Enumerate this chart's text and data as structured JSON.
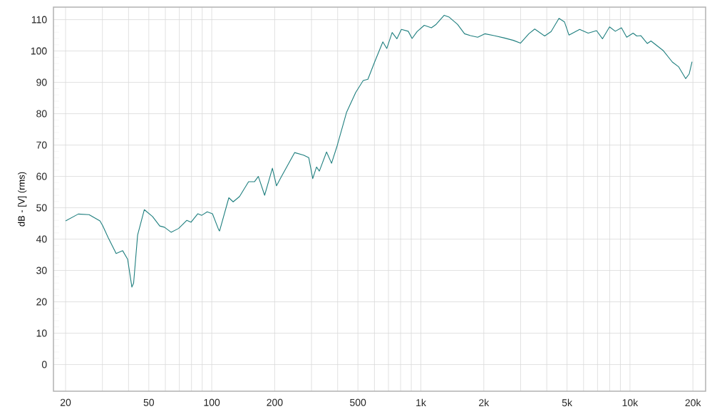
{
  "chart_data": {
    "type": "line",
    "ylabel": "dB - [V]  (rms)",
    "log": "x",
    "grid": true,
    "xlim": [
      17.5,
      23000
    ],
    "ylim": [
      -8.5,
      114
    ],
    "xticks": [
      20,
      {
        "value": 30,
        "label": null
      },
      {
        "value": 40,
        "label": null
      },
      50,
      {
        "value": 60,
        "label": null
      },
      {
        "value": 70,
        "label": null
      },
      {
        "value": 80,
        "label": null
      },
      {
        "value": 90,
        "label": null
      },
      100,
      200,
      {
        "value": 300,
        "label": null
      },
      {
        "value": 400,
        "label": null
      },
      500,
      {
        "value": 600,
        "label": null
      },
      {
        "value": 700,
        "label": null
      },
      {
        "value": 800,
        "label": null
      },
      {
        "value": 900,
        "label": null
      },
      {
        "value": 1000,
        "label": "1k"
      },
      {
        "value": 2000,
        "label": "2k"
      },
      {
        "value": 3000,
        "label": null
      },
      {
        "value": 4000,
        "label": null
      },
      {
        "value": 5000,
        "label": "5k"
      },
      {
        "value": 6000,
        "label": null
      },
      {
        "value": 7000,
        "label": null
      },
      {
        "value": 8000,
        "label": null
      },
      {
        "value": 9000,
        "label": null
      },
      {
        "value": 10000,
        "label": "10k"
      },
      {
        "value": 20000,
        "label": "20k"
      }
    ],
    "yticks": [
      0,
      10,
      20,
      30,
      40,
      50,
      60,
      70,
      80,
      90,
      100,
      110
    ],
    "line_style": "solid",
    "series": [
      {
        "color": "#1f7f7f",
        "x": [
          20,
          23,
          25.9,
          29.2,
          30.1,
          32,
          34.9,
          37.5,
          39.6,
          41.5,
          42.3,
          44.2,
          47.6,
          52.1,
          56.4,
          59.4,
          63.9,
          69.4,
          76,
          79.6,
          85.8,
          89.6,
          95.1,
          100.8,
          107.9,
          109,
          120.7,
          126.6,
          135.8,
          150,
          160,
          167,
          179,
          195,
          204,
          214,
          249,
          275,
          291,
          304,
          317,
          327,
          354,
          374,
          398,
          441,
          488,
          530,
          558,
          602,
          658,
          687,
          729,
          768,
          807,
          870,
          908,
          959,
          1038,
          1123,
          1183,
          1293,
          1366,
          1497,
          1618,
          1728,
          1870,
          2022,
          2240,
          2494,
          2768,
          2994,
          3284,
          3504,
          3910,
          4198,
          4576,
          4860,
          5108,
          5746,
          6312,
          6920,
          7388,
          7988,
          8508,
          9106,
          9646,
          10350,
          10770,
          11280,
          12110,
          12600,
          14390,
          15940,
          17070,
          18460,
          19200,
          19810
        ],
        "values": [
          45.8,
          48,
          47.8,
          45.8,
          44.3,
          40.4,
          35.4,
          36.3,
          33.6,
          24.7,
          26,
          41.3,
          49.4,
          47.2,
          44.2,
          43.8,
          42.2,
          43.4,
          46,
          45.4,
          48.1,
          47.6,
          48.7,
          48.1,
          43,
          42.6,
          53.2,
          51.9,
          53.6,
          58.3,
          58.3,
          60,
          54,
          62.6,
          57,
          59.6,
          67.6,
          66.8,
          66,
          59.3,
          63,
          61.7,
          67.8,
          64.2,
          69.8,
          80.4,
          86.8,
          90.6,
          91,
          96.6,
          102.9,
          100.8,
          105.9,
          103.9,
          106.9,
          106.3,
          104,
          106.2,
          108.2,
          107.4,
          108.5,
          111.4,
          110.8,
          108.5,
          105.5,
          104.9,
          104.4,
          105.5,
          104.9,
          104.2,
          103.4,
          102.5,
          105.5,
          107,
          104.8,
          106.2,
          110.4,
          109.3,
          105.1,
          106.9,
          105.7,
          106.5,
          103.9,
          107.7,
          106.3,
          107.4,
          104.4,
          105.7,
          104.8,
          104.9,
          102.4,
          103.2,
          100.2,
          96.5,
          95,
          91.2,
          92.7,
          96.6
        ]
      }
    ]
  }
}
